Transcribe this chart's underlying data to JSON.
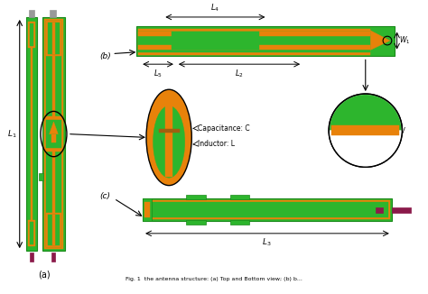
{
  "green": "#2db52d",
  "orange": "#e8820a",
  "red_purple": "#8b1a4a",
  "gray": "#999999",
  "black": "#000000",
  "white": "#ffffff",
  "label_a": "(a)",
  "label_b": "(b)",
  "label_c": "(c)",
  "caption": "Fig. 1  the antenna structure: (a) Top and Bottom view; (b) b..."
}
